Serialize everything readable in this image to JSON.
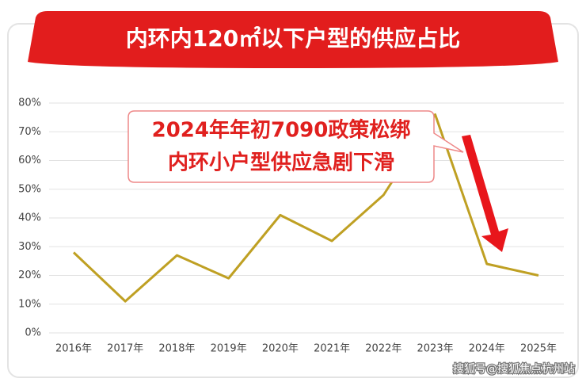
{
  "chart_data": {
    "type": "line",
    "title": "内环内120㎡以下户型的供应占比",
    "annotation": [
      "2024年年初7090政策松绑",
      "内环小户型供应急剧下滑"
    ],
    "categories": [
      "2016年",
      "2017年",
      "2018年",
      "2019年",
      "2020年",
      "2021年",
      "2022年",
      "2023年",
      "2024年",
      "2025年"
    ],
    "values": [
      28,
      11,
      27,
      19,
      41,
      32,
      48,
      76,
      24,
      20
    ],
    "color": "#bfa023",
    "ylim": [
      0,
      80
    ],
    "yticks": [
      {
        "value": 0,
        "label": "0%"
      },
      {
        "value": 10,
        "label": "10%"
      },
      {
        "value": 20,
        "label": "20%"
      },
      {
        "value": 30,
        "label": "30%"
      },
      {
        "value": 40,
        "label": "40%"
      },
      {
        "value": 50,
        "label": "50%"
      },
      {
        "value": 60,
        "label": "60%"
      },
      {
        "value": 70,
        "label": "70%"
      },
      {
        "value": 80,
        "label": "80%"
      }
    ],
    "grid": true
  },
  "watermark": "搜狐号@搜狐焦点杭州站"
}
